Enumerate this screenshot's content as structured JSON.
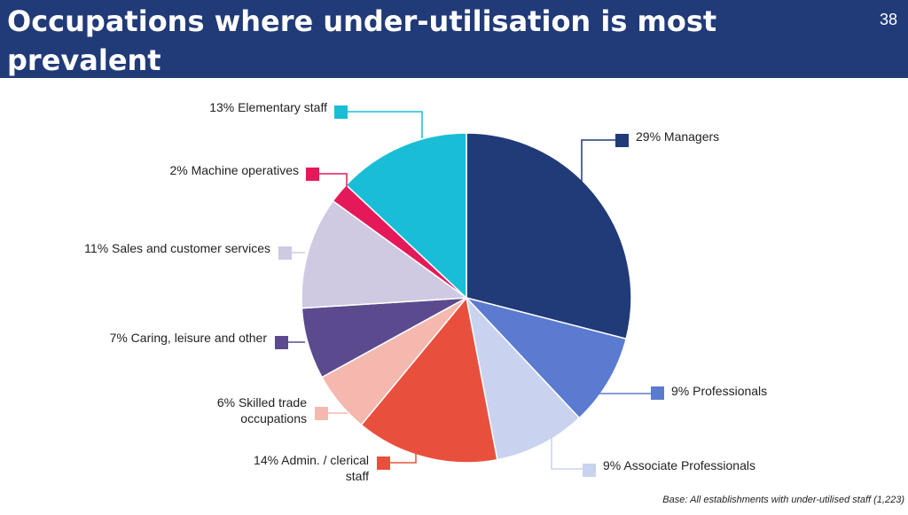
{
  "header": {
    "title": "Occupations where under-utilisation is most prevalent",
    "page_number": "38"
  },
  "footer": {
    "base_note": "Base: All establishments with under-utilised staff (1,223)"
  },
  "chart_data": {
    "type": "pie",
    "title": "",
    "slices": [
      {
        "label": "29% Managers",
        "label_lines": [
          "29% Managers"
        ],
        "value": 29,
        "color": "#213A78"
      },
      {
        "label": "9% Professionals",
        "label_lines": [
          "9% Professionals"
        ],
        "value": 9,
        "color": "#5B7BD0"
      },
      {
        "label": "9% Associate Professionals",
        "label_lines": [
          "9% Associate Professionals"
        ],
        "value": 9,
        "color": "#C9D3EF"
      },
      {
        "label": "14% Admin. / clerical staff",
        "label_lines": [
          "14% Admin. / clerical",
          "staff"
        ],
        "value": 14,
        "color": "#E8503D"
      },
      {
        "label": "6% Skilled trade occupations",
        "label_lines": [
          "6% Skilled trade",
          "occupations"
        ],
        "value": 6,
        "color": "#F4B8AE"
      },
      {
        "label": "7% Caring, leisure and other",
        "label_lines": [
          "7% Caring, leisure and other"
        ],
        "value": 7,
        "color": "#5C4A8E"
      },
      {
        "label": "11% Sales and customer services",
        "label_lines": [
          "11% Sales and customer services"
        ],
        "value": 11,
        "color": "#CFCAE2"
      },
      {
        "label": "2% Machine operatives",
        "label_lines": [
          "2% Machine operatives"
        ],
        "value": 2,
        "color": "#E5195A"
      },
      {
        "label": "13% Elementary staff",
        "label_lines": [
          "13% Elementary staff"
        ],
        "value": 13,
        "color": "#19BED6"
      }
    ]
  }
}
